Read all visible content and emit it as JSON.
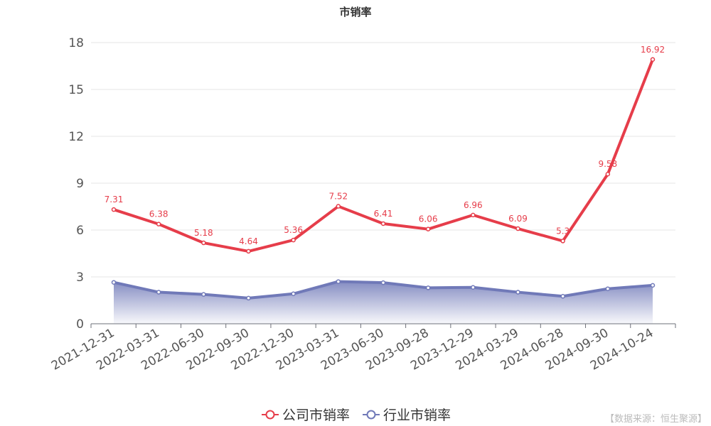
{
  "chart_data": {
    "type": "line",
    "title": "市销率",
    "categories": [
      "2021-12-31",
      "2022-03-31",
      "2022-06-30",
      "2022-09-30",
      "2022-12-30",
      "2023-03-31",
      "2023-06-30",
      "2023-09-28",
      "2023-12-29",
      "2024-03-29",
      "2024-06-28",
      "2024-09-30",
      "2024-10-24"
    ],
    "ylim": [
      0,
      18
    ],
    "yticks": [
      0,
      3,
      6,
      9,
      12,
      15,
      18
    ],
    "grid": true,
    "legend_position": "bottom",
    "series": [
      {
        "name": "公司市销率",
        "color": "#e63d4a",
        "values": [
          7.31,
          6.38,
          5.18,
          4.64,
          5.36,
          7.52,
          6.41,
          6.06,
          6.96,
          6.09,
          5.3,
          9.58,
          16.92
        ],
        "data_labels": [
          "7.31",
          "6.38",
          "5.18",
          "4.64",
          "5.36",
          "7.52",
          "6.41",
          "6.06",
          "6.96",
          "6.09",
          "5.3",
          "9.58",
          "16.92"
        ]
      },
      {
        "name": "行业市销率",
        "color": "#7079b8",
        "area": true,
        "values": [
          2.65,
          2.02,
          1.88,
          1.64,
          1.92,
          2.7,
          2.63,
          2.3,
          2.33,
          2.02,
          1.76,
          2.24,
          2.46
        ]
      }
    ]
  },
  "source": "【数据来源：恒生聚源】"
}
